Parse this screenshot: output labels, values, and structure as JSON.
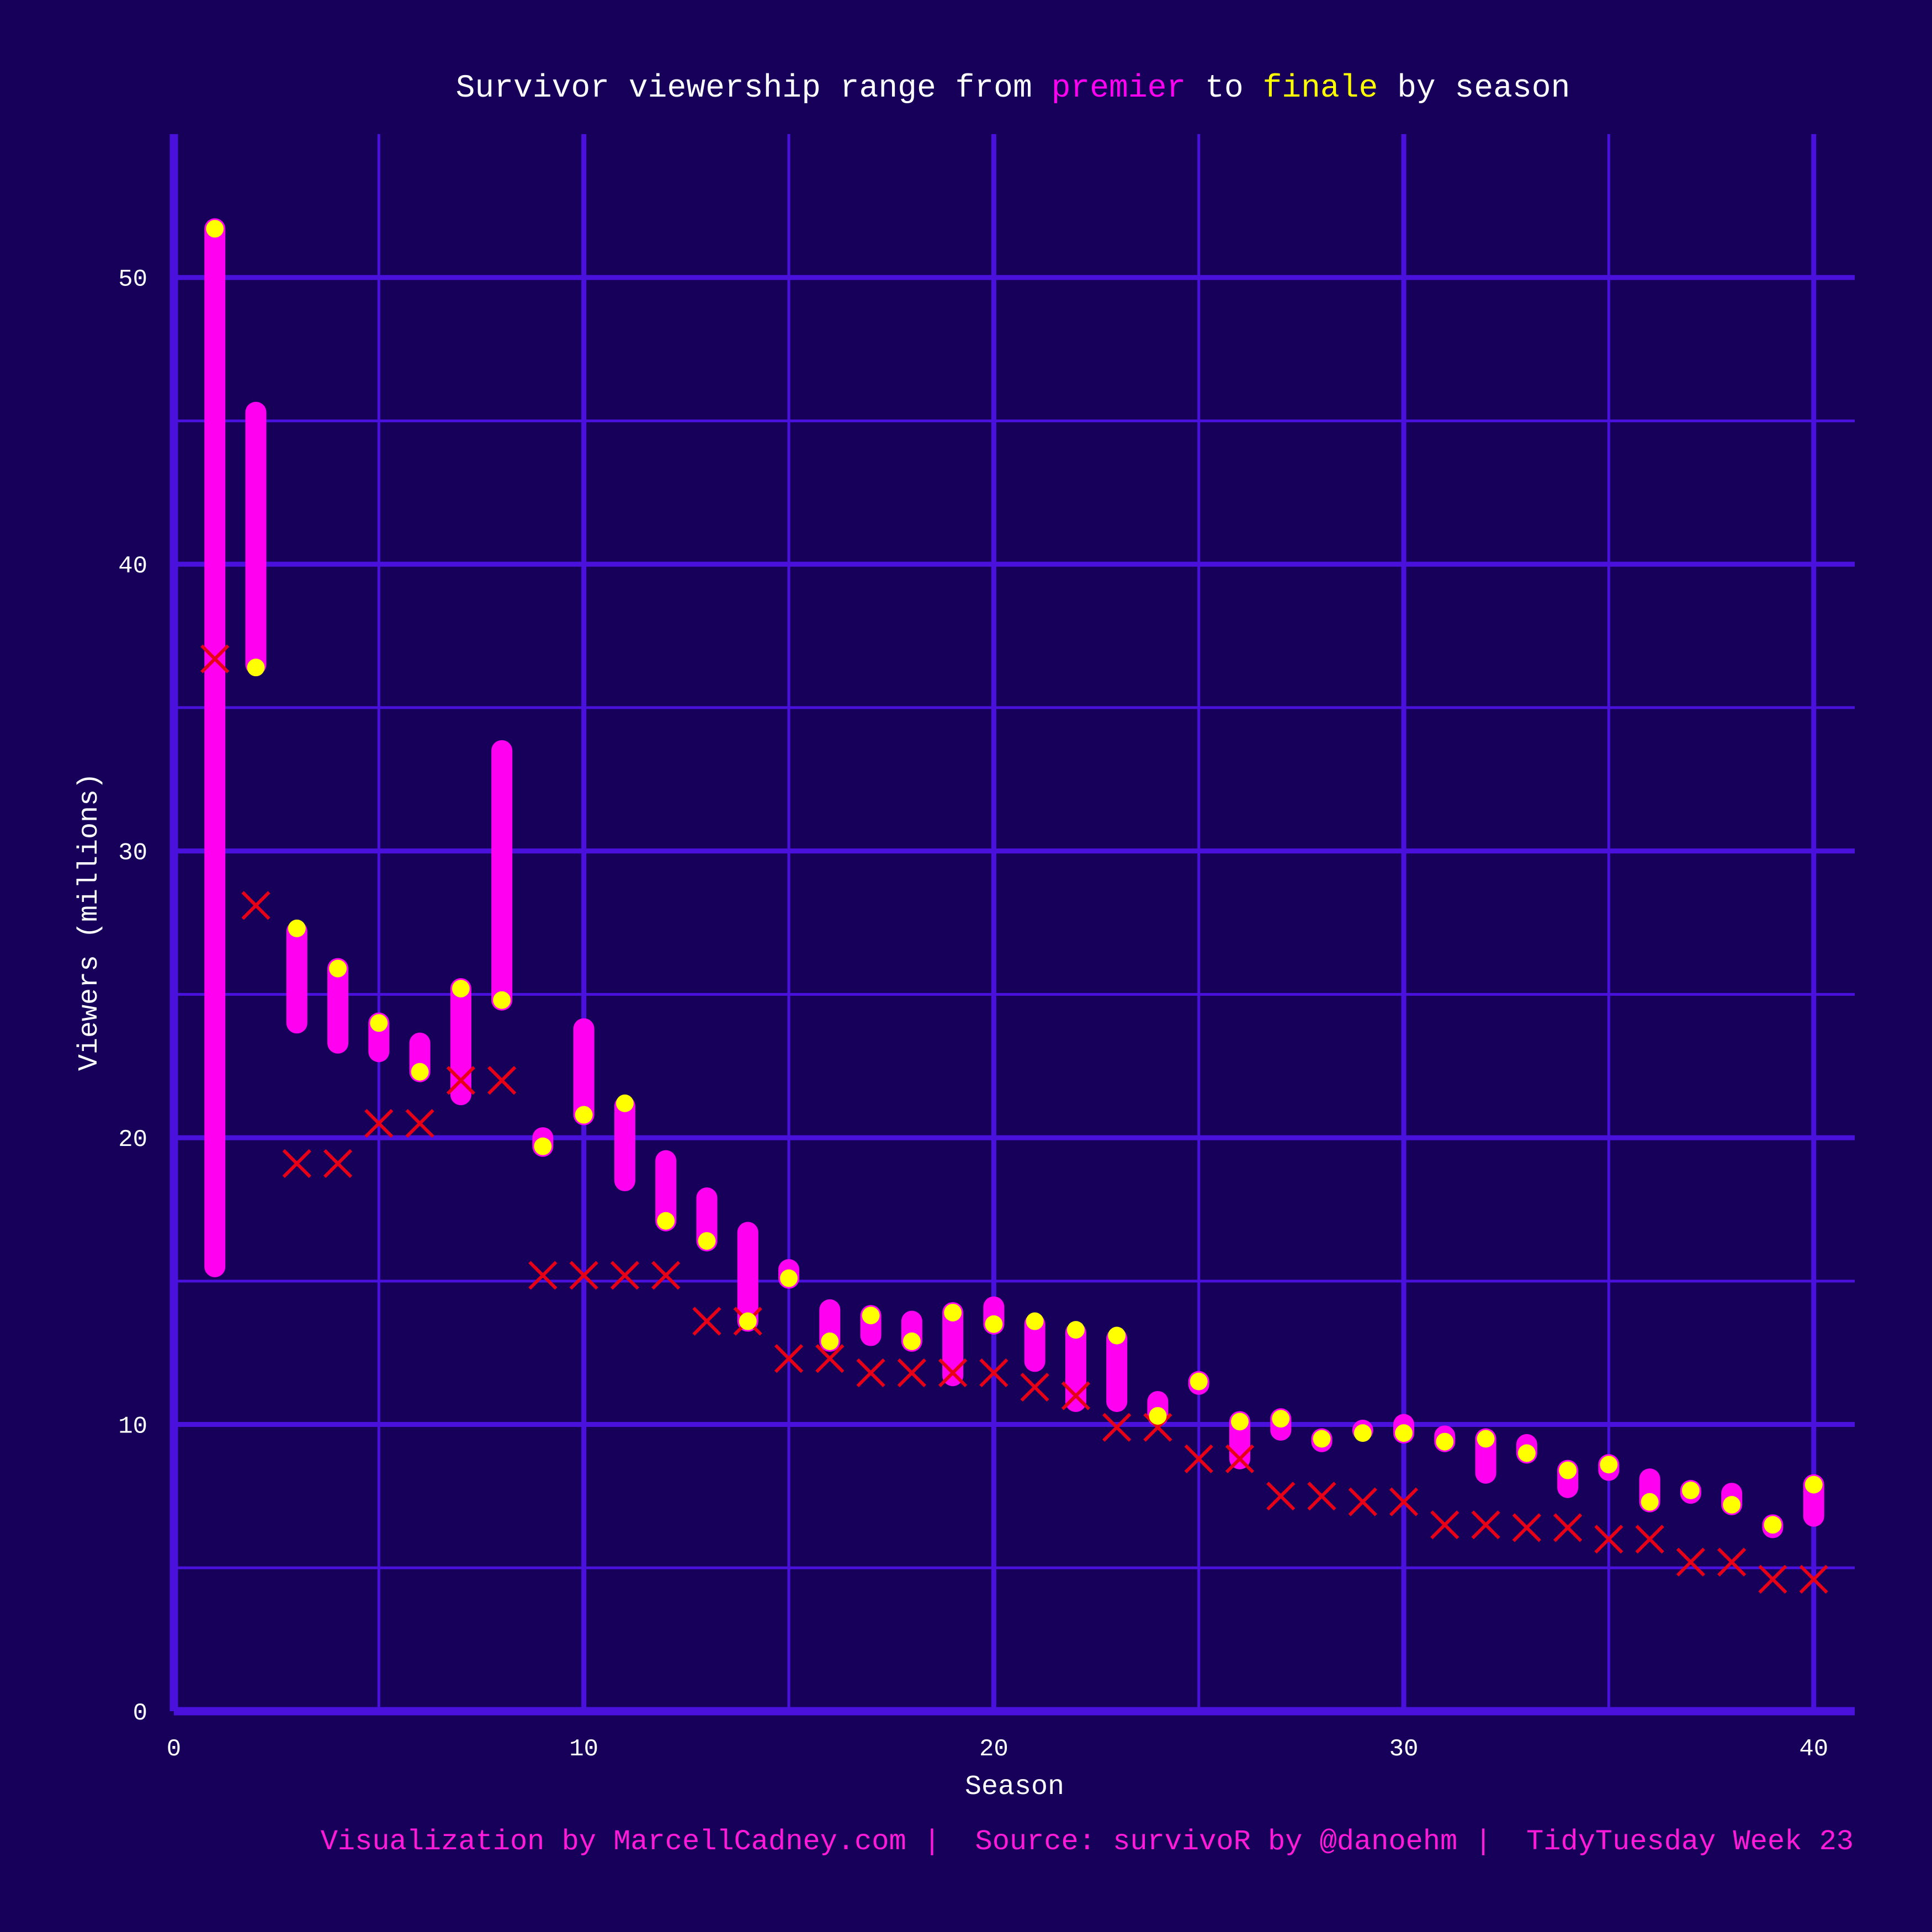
{
  "colors": {
    "background": "#17005A",
    "grid_major": "#4A10DC",
    "grid_minor": "#4A10DC",
    "axis_line": "#4A10DC",
    "range_bar": "#FF00F0",
    "finale_point": "#FFFF00",
    "cross_marker": "#E80016",
    "text": "#FFFFFF",
    "caption": "#FF1AD9"
  },
  "chart_data": {
    "type": "scatter",
    "title_parts": [
      {
        "text": "Survivor viewership range from ",
        "color": "#FFFFFF"
      },
      {
        "text": "premier",
        "color": "#FF00F0"
      },
      {
        "text": " to ",
        "color": "#FFFFFF"
      },
      {
        "text": "finale",
        "color": "#FFFF00"
      },
      {
        "text": " by season",
        "color": "#FFFFFF"
      }
    ],
    "xlabel": "Season",
    "ylabel": "Viewers (millions)",
    "xlim": [
      0,
      41
    ],
    "ylim": [
      0,
      55
    ],
    "x_ticks": [
      "0",
      "10",
      "20",
      "30",
      "40"
    ],
    "x_tick_values": [
      0,
      10,
      20,
      30,
      40
    ],
    "y_ticks": [
      "0",
      "10",
      "20",
      "30",
      "40",
      "50"
    ],
    "y_tick_values": [
      0,
      10,
      20,
      30,
      40,
      50
    ],
    "grid": true,
    "legend": "none",
    "series": [
      {
        "mark": "range-bar",
        "seasons": [
          1,
          2,
          3,
          4,
          5,
          6,
          7,
          8,
          9,
          10,
          11,
          12,
          13,
          14,
          15,
          16,
          17,
          18,
          19,
          20,
          21,
          22,
          23,
          24,
          25,
          26,
          27,
          28,
          29,
          30,
          31,
          32,
          33,
          34,
          35,
          36,
          37,
          38,
          39,
          40
        ],
        "low": [
          15.5,
          36.5,
          24.0,
          23.3,
          23.0,
          22.3,
          21.5,
          24.8,
          19.7,
          20.8,
          18.5,
          17.1,
          16.4,
          13.6,
          15.1,
          12.9,
          13.1,
          12.9,
          11.7,
          13.5,
          12.2,
          10.8,
          10.8,
          10.3,
          11.4,
          8.8,
          9.8,
          9.4,
          9.8,
          9.7,
          9.4,
          8.3,
          9.0,
          7.8,
          8.4,
          7.3,
          7.6,
          7.2,
          6.4,
          6.8
        ],
        "high": [
          51.7,
          45.3,
          27.2,
          25.9,
          24.0,
          23.3,
          25.2,
          33.5,
          20.0,
          23.8,
          21.1,
          19.2,
          17.9,
          16.7,
          15.4,
          14.0,
          13.8,
          13.6,
          13.9,
          14.1,
          13.5,
          13.2,
          13.0,
          10.8,
          11.5,
          10.1,
          10.2,
          9.5,
          9.8,
          10.0,
          9.6,
          9.5,
          9.3,
          8.4,
          8.6,
          8.1,
          7.7,
          7.6,
          6.5,
          7.9
        ]
      },
      {
        "mark": "finale-point",
        "seasons": [
          1,
          2,
          3,
          4,
          5,
          6,
          7,
          8,
          9,
          10,
          11,
          12,
          13,
          14,
          15,
          16,
          17,
          18,
          19,
          20,
          21,
          22,
          23,
          24,
          25,
          26,
          27,
          28,
          29,
          30,
          31,
          32,
          33,
          34,
          35,
          36,
          37,
          38,
          39,
          40
        ],
        "values": [
          51.7,
          36.4,
          27.3,
          25.9,
          24.0,
          22.3,
          25.2,
          24.8,
          19.7,
          20.8,
          21.2,
          17.1,
          16.4,
          13.6,
          15.1,
          12.9,
          13.8,
          12.9,
          13.9,
          13.5,
          13.6,
          13.3,
          13.1,
          10.3,
          11.5,
          10.1,
          10.2,
          9.5,
          9.7,
          9.7,
          9.4,
          9.5,
          9.0,
          8.4,
          8.6,
          7.3,
          7.7,
          7.2,
          6.5,
          7.9
        ]
      },
      {
        "mark": "cross",
        "x": [
          1,
          2,
          3,
          4,
          5,
          6,
          7,
          8,
          9,
          10,
          11,
          12,
          13,
          14,
          15,
          16,
          17,
          18,
          19,
          20,
          21,
          22,
          23,
          24,
          25,
          26,
          27,
          28,
          29,
          30,
          31,
          32,
          33,
          34,
          35,
          36,
          37,
          38,
          39,
          40
        ],
        "y": [
          36.7,
          28.1,
          19.1,
          19.1,
          20.5,
          20.5,
          22.0,
          22.0,
          15.2,
          15.2,
          15.2,
          15.2,
          13.6,
          13.6,
          12.3,
          12.3,
          11.8,
          11.8,
          11.8,
          11.8,
          11.3,
          11.0,
          9.9,
          9.9,
          8.8,
          8.8,
          7.5,
          7.5,
          7.3,
          7.3,
          6.5,
          6.5,
          6.4,
          6.4,
          6.0,
          6.0,
          5.2,
          5.2,
          4.6,
          4.6
        ]
      }
    ]
  },
  "caption_parts": [
    "Visualization by MarcellCadney.com",
    "Source: survivoR by @danoehm",
    "TidyTuesday Week 23"
  ]
}
